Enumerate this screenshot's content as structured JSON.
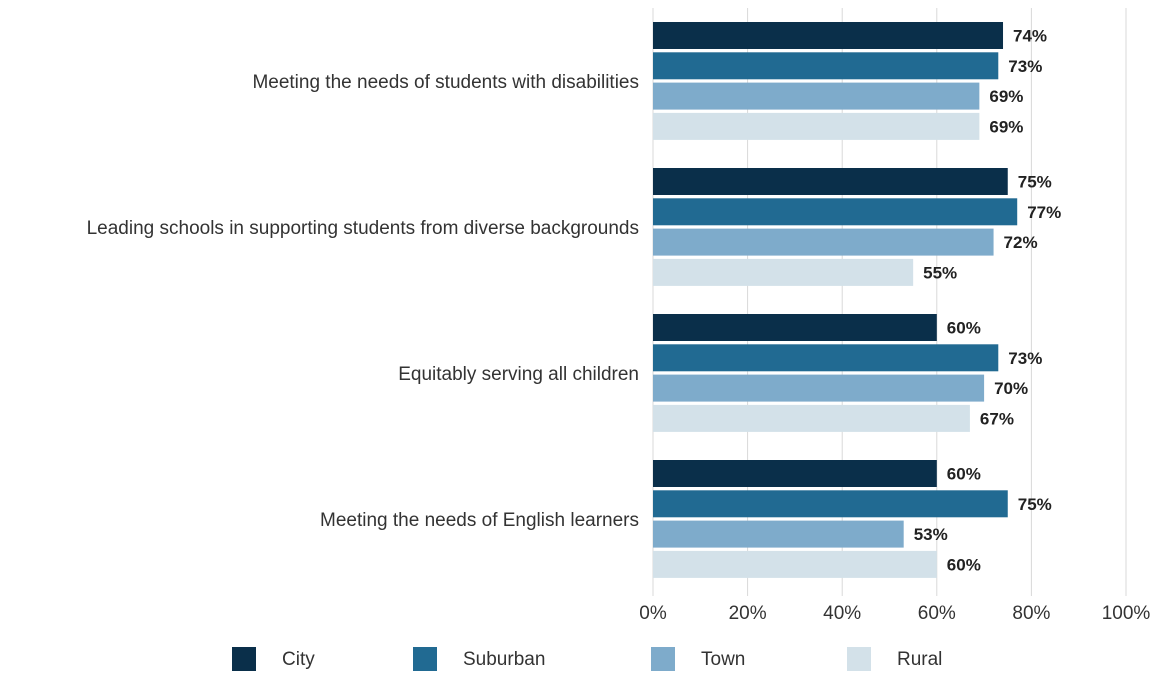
{
  "chart_data": {
    "type": "bar",
    "orientation": "horizontal",
    "categories": [
      "Meeting the needs of students with disabilities",
      "Leading schools in supporting students from diverse backgrounds",
      "Equitably serving all children",
      "Meeting the needs of English learners"
    ],
    "series": [
      {
        "name": "City",
        "color": "#0a2f4a",
        "values": [
          74,
          75,
          60,
          60
        ]
      },
      {
        "name": "Suburban",
        "color": "#216a92",
        "values": [
          73,
          77,
          73,
          75
        ]
      },
      {
        "name": "Town",
        "color": "#7eabcb",
        "values": [
          69,
          72,
          70,
          53
        ]
      },
      {
        "name": "Rural",
        "color": "#d3e1e9",
        "values": [
          69,
          55,
          67,
          60
        ]
      }
    ],
    "xlim": [
      0,
      100
    ],
    "xticks": [
      0,
      20,
      40,
      60,
      80,
      100
    ],
    "tick_suffix": "%",
    "value_suffix": "%",
    "grid": true,
    "legend": "bottom"
  }
}
